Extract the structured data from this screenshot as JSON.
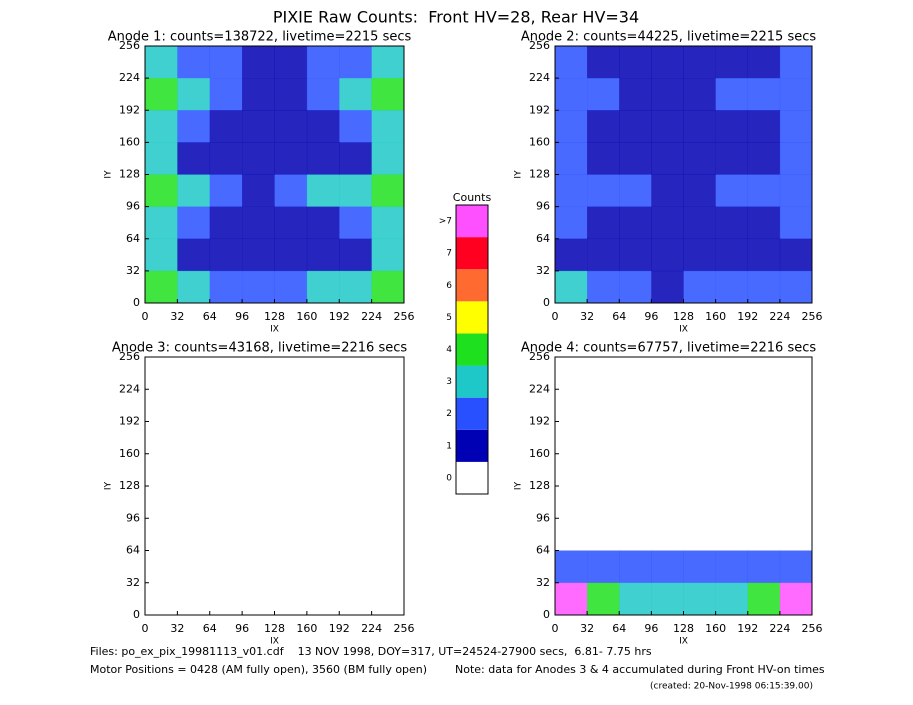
{
  "title": "PIXIE Raw Counts:  Front HV=28, Rear HV=34",
  "chart_data": [
    {
      "type": "heatmap",
      "title": "Anode 1: counts=138722, livetime=2215 secs",
      "xlabel": "IX",
      "ylabel": "IY",
      "xlim": [
        0,
        256
      ],
      "ylim": [
        0,
        256
      ],
      "xticks": [
        0,
        32,
        64,
        96,
        128,
        160,
        192,
        224,
        256
      ],
      "yticks": [
        0,
        32,
        64,
        96,
        128,
        160,
        192,
        224,
        256
      ],
      "levels": [
        [
          3,
          2,
          2,
          1,
          1,
          2,
          2,
          3
        ],
        [
          4,
          3,
          2,
          1,
          1,
          2,
          3,
          4
        ],
        [
          3,
          2,
          1,
          1,
          1,
          1,
          2,
          3
        ],
        [
          3,
          1,
          1,
          1,
          1,
          1,
          1,
          3
        ],
        [
          4,
          3,
          2,
          1,
          2,
          3,
          3,
          4
        ],
        [
          3,
          2,
          1,
          1,
          1,
          1,
          2,
          3
        ],
        [
          3,
          1,
          1,
          1,
          1,
          1,
          1,
          3
        ],
        [
          4,
          3,
          2,
          2,
          2,
          3,
          3,
          4
        ]
      ]
    },
    {
      "type": "heatmap",
      "title": "Anode 2: counts=44225, livetime=2215 secs",
      "xlabel": "IX",
      "ylabel": "IY",
      "xlim": [
        0,
        256
      ],
      "ylim": [
        0,
        256
      ],
      "xticks": [
        0,
        32,
        64,
        96,
        128,
        160,
        192,
        224,
        256
      ],
      "yticks": [
        0,
        32,
        64,
        96,
        128,
        160,
        192,
        224,
        256
      ],
      "levels": [
        [
          2,
          1,
          1,
          1,
          1,
          1,
          1,
          2
        ],
        [
          2,
          2,
          1,
          1,
          1,
          2,
          2,
          2
        ],
        [
          2,
          1,
          1,
          1,
          1,
          1,
          1,
          2
        ],
        [
          2,
          1,
          1,
          1,
          1,
          1,
          1,
          2
        ],
        [
          2,
          2,
          2,
          1,
          1,
          2,
          2,
          2
        ],
        [
          2,
          1,
          1,
          1,
          1,
          1,
          1,
          2
        ],
        [
          1,
          1,
          1,
          1,
          1,
          1,
          1,
          1
        ],
        [
          3,
          2,
          2,
          1,
          2,
          2,
          2,
          2
        ]
      ]
    },
    {
      "type": "heatmap",
      "title": "Anode 3: counts=43168, livetime=2216 secs",
      "xlabel": "IX",
      "ylabel": "IY",
      "xlim": [
        0,
        256
      ],
      "ylim": [
        0,
        256
      ],
      "xticks": [
        0,
        32,
        64,
        96,
        128,
        160,
        192,
        224,
        256
      ],
      "yticks": [
        0,
        32,
        64,
        96,
        128,
        160,
        192,
        224,
        256
      ],
      "levels": [
        [
          0,
          0,
          0,
          0,
          0,
          0,
          0,
          0
        ],
        [
          0,
          0,
          0,
          0,
          0,
          0,
          0,
          0
        ],
        [
          0,
          0,
          0,
          0,
          0,
          0,
          0,
          0
        ],
        [
          0,
          0,
          0,
          0,
          0,
          0,
          0,
          0
        ],
        [
          0,
          0,
          0,
          0,
          0,
          0,
          0,
          0
        ],
        [
          0,
          0,
          0,
          0,
          0,
          0,
          0,
          0
        ],
        [
          0,
          0,
          0,
          0,
          0,
          0,
          0,
          0
        ],
        [
          0,
          0,
          0,
          0,
          0,
          0,
          0,
          0
        ]
      ]
    },
    {
      "type": "heatmap",
      "title": "Anode 4: counts=67757, livetime=2216 secs",
      "xlabel": "IX",
      "ylabel": "IY",
      "xlim": [
        0,
        256
      ],
      "ylim": [
        0,
        256
      ],
      "xticks": [
        0,
        32,
        64,
        96,
        128,
        160,
        192,
        224,
        256
      ],
      "yticks": [
        0,
        32,
        64,
        96,
        128,
        160,
        192,
        224,
        256
      ],
      "levels": [
        [
          0,
          0,
          0,
          0,
          0,
          0,
          0,
          0
        ],
        [
          0,
          0,
          0,
          0,
          0,
          0,
          0,
          0
        ],
        [
          0,
          0,
          0,
          0,
          0,
          0,
          0,
          0
        ],
        [
          0,
          0,
          0,
          0,
          0,
          0,
          0,
          0
        ],
        [
          0,
          0,
          0,
          0,
          0,
          0,
          0,
          0
        ],
        [
          0,
          0,
          0,
          0,
          0,
          0,
          0,
          0
        ],
        [
          2,
          2,
          2,
          2,
          2,
          2,
          2,
          2
        ],
        [
          8,
          4,
          3,
          3,
          3,
          3,
          4,
          8
        ]
      ]
    }
  ],
  "colorbar": {
    "title": "Counts",
    "levels": [
      0,
      1,
      2,
      3,
      4,
      5,
      6,
      7,
      {
        "value": 8,
        "label": ">7"
      }
    ],
    "colors": [
      "#ffffff",
      "#0000b4",
      "#2850ff",
      "#1ec8c8",
      "#1ee01e",
      "#ffff00",
      "#ff6a30",
      "#ff0020",
      "#ff50ff"
    ]
  },
  "footer": {
    "files": "Files: po_ex_pix_19981113_v01.cdf    13 NOV 1998, DOY=317, UT=24524-27900 secs,  6.81- 7.75 hrs",
    "motor": "Motor Positions = 0428 (AM fully open), 3560 (BM fully open)",
    "note": "Note: data for Anodes 3 & 4 accumulated during Front HV-on times",
    "created": "(created: 20-Nov-1998 06:15:39.00)"
  }
}
